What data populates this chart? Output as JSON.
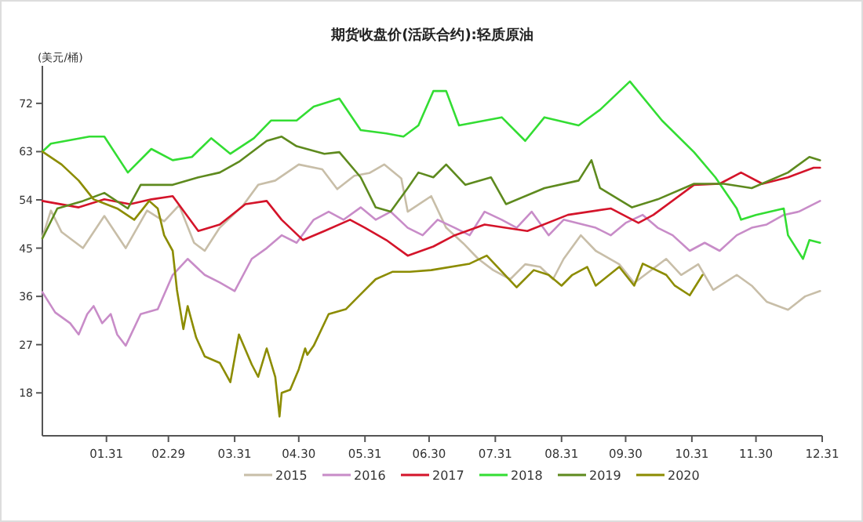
{
  "chart_data": {
    "type": "line",
    "title": "期货收盘价(活跃合约):轻质原油",
    "ylabel": "(美元/桶)",
    "xlim": [
      "--01-01",
      "--12-31"
    ],
    "ylim": [
      10,
      79
    ],
    "xticks": [
      {
        "value": "--01-31",
        "label": "01.31"
      },
      {
        "value": "--02-29",
        "label": "02.29"
      },
      {
        "value": "--03-31",
        "label": "03.31"
      },
      {
        "value": "--04-30",
        "label": "04.30"
      },
      {
        "value": "--05-31",
        "label": "05.31"
      },
      {
        "value": "--06-30",
        "label": "06.30"
      },
      {
        "value": "--07-31",
        "label": "07.31"
      },
      {
        "value": "--08-31",
        "label": "08.31"
      },
      {
        "value": "--09-30",
        "label": "09.30"
      },
      {
        "value": "--10-31",
        "label": "10.31"
      },
      {
        "value": "--11-30",
        "label": "11.30"
      },
      {
        "value": "--12-31",
        "label": "12.31"
      }
    ],
    "yticks": [
      18,
      27,
      36,
      45,
      54,
      63,
      72
    ],
    "grid": false,
    "legend": "bottom",
    "series": [
      {
        "name": "2015",
        "color": "#c8bea8",
        "x": [
          "--01-01",
          "--01-05",
          "--01-10",
          "--01-20",
          "--01-30",
          "--02-09",
          "--02-19",
          "--02-27",
          "--03-05",
          "--03-12",
          "--03-17",
          "--03-24",
          "--04-04",
          "--04-11",
          "--04-19",
          "--04-30",
          "--05-11",
          "--05-18",
          "--05-26",
          "--06-02",
          "--06-09",
          "--06-17",
          "--06-20",
          "--07-01",
          "--07-08",
          "--07-16",
          "--07-23",
          "--07-30",
          "--08-07",
          "--08-14",
          "--08-21",
          "--08-27",
          "--09-01",
          "--09-09",
          "--09-16",
          "--09-27",
          "--10-04",
          "--10-19",
          "--10-26",
          "--11-03",
          "--11-10",
          "--11-21",
          "--11-28",
          "--12-05",
          "--12-15",
          "--12-23",
          "--12-30"
        ],
        "values": [
          47,
          52,
          48,
          45,
          51,
          45,
          52,
          50,
          53,
          46,
          44.5,
          48.8,
          53,
          56.8,
          57.6,
          60.6,
          59.7,
          56,
          58.5,
          59,
          60.6,
          58,
          51.8,
          54.7,
          48.8,
          45.9,
          43,
          40.9,
          39.2,
          42,
          41.5,
          39.2,
          43,
          47.4,
          44.5,
          42,
          38.5,
          43,
          40,
          42,
          37.2,
          40,
          38,
          35,
          33.5,
          36,
          37
        ]
      },
      {
        "name": "2016",
        "color": "#c88cc8",
        "x": [
          "--01-01",
          "--01-07",
          "--01-14",
          "--01-18",
          "--01-22",
          "--01-25",
          "--01-29",
          "--02-02",
          "--02-05",
          "--02-09",
          "--02-16",
          "--02-24",
          "--03-02",
          "--03-09",
          "--03-17",
          "--03-24",
          "--03-31",
          "--04-08",
          "--04-15",
          "--04-22",
          "--04-29",
          "--05-07",
          "--05-14",
          "--05-21",
          "--05-29",
          "--06-05",
          "--06-12",
          "--06-20",
          "--06-27",
          "--07-04",
          "--07-12",
          "--07-19",
          "--07-26",
          "--08-03",
          "--08-10",
          "--08-17",
          "--08-25",
          "--09-01",
          "--09-16",
          "--09-23",
          "--09-30",
          "--10-08",
          "--10-15",
          "--10-22",
          "--10-30",
          "--11-06",
          "--11-13",
          "--11-21",
          "--11-28",
          "--12-05",
          "--12-13",
          "--12-20",
          "--12-30"
        ],
        "values": [
          36.8,
          33,
          31,
          28.9,
          32.7,
          34.2,
          31,
          32.7,
          28.9,
          26.8,
          32.7,
          33.6,
          40,
          43,
          40,
          38.6,
          37,
          43,
          45,
          47.4,
          46,
          50.3,
          51.8,
          50.3,
          52.6,
          50.3,
          51.8,
          48.8,
          47.4,
          50.3,
          48.8,
          47.4,
          51.8,
          50.3,
          48.8,
          51.8,
          47.4,
          50.3,
          48.8,
          47.4,
          49.7,
          51.2,
          48.8,
          47.4,
          44.5,
          46,
          44.5,
          47.4,
          48.8,
          49.4,
          51.2,
          51.8,
          53.8
        ]
      },
      {
        "name": "2017",
        "color": "#d4142a",
        "x": [
          "--01-01",
          "--01-18",
          "--01-30",
          "--02-11",
          "--02-21",
          "--03-02",
          "--03-14",
          "--03-24",
          "--04-05",
          "--04-15",
          "--04-22",
          "--05-02",
          "--05-12",
          "--05-24",
          "--05-31",
          "--06-10",
          "--06-20",
          "--07-02",
          "--07-12",
          "--07-26",
          "--08-15",
          "--09-03",
          "--09-23",
          "--10-06",
          "--10-13",
          "--11-01",
          "--11-13",
          "--11-23",
          "--12-03",
          "--12-15",
          "--12-27",
          "--12-30"
        ],
        "values": [
          53.8,
          52.6,
          54.1,
          53.2,
          54.1,
          54.7,
          48.2,
          49.4,
          53.2,
          53.8,
          50.3,
          46.5,
          48.2,
          50.3,
          48.8,
          46.5,
          43.6,
          45.3,
          47.4,
          49.4,
          48.2,
          51.2,
          52.4,
          49.7,
          51.2,
          56.8,
          57,
          59.1,
          57,
          58.2,
          60,
          60
        ]
      },
      {
        "name": "2018",
        "color": "#33dd33",
        "x": [
          "--01-01",
          "--01-05",
          "--01-23",
          "--01-30",
          "--02-10",
          "--02-21",
          "--03-02",
          "--03-11",
          "--03-20",
          "--03-29",
          "--04-09",
          "--04-17",
          "--04-29",
          "--05-07",
          "--05-19",
          "--05-29",
          "--06-10",
          "--06-18",
          "--06-25",
          "--07-02",
          "--07-08",
          "--07-14",
          "--08-03",
          "--08-14",
          "--08-23",
          "--09-08",
          "--09-18",
          "--10-02",
          "--10-17",
          "--11-01",
          "--11-11",
          "--11-21",
          "--11-23",
          "--11-30",
          "--12-13",
          "--12-15",
          "--12-22",
          "--12-25",
          "--12-30"
        ],
        "values": [
          63,
          64.5,
          65.8,
          65.8,
          59.1,
          63.5,
          61.4,
          62,
          65.5,
          62.6,
          65.5,
          68.8,
          68.8,
          71.4,
          72.9,
          67,
          66.4,
          65.8,
          67.9,
          74.3,
          74.3,
          67.9,
          69.4,
          65,
          69.4,
          67.9,
          70.8,
          76.1,
          68.8,
          62.9,
          58.2,
          52.4,
          50.3,
          51.2,
          52.4,
          47.4,
          43,
          46.5,
          46
        ]
      },
      {
        "name": "2019",
        "color": "#5e8a1e",
        "x": [
          "--01-01",
          "--01-08",
          "--01-20",
          "--01-30",
          "--02-10",
          "--02-16",
          "--03-02",
          "--03-14",
          "--03-24",
          "--04-02",
          "--04-15",
          "--04-22",
          "--04-29",
          "--05-12",
          "--05-19",
          "--05-29",
          "--06-05",
          "--06-12",
          "--06-20",
          "--06-25",
          "--07-02",
          "--07-08",
          "--07-17",
          "--07-29",
          "--08-05",
          "--08-23",
          "--09-08",
          "--09-14",
          "--09-18",
          "--10-03",
          "--10-15",
          "--11-01",
          "--11-15",
          "--11-28",
          "--12-15",
          "--12-25",
          "--12-30"
        ],
        "values": [
          46.8,
          52.4,
          53.8,
          55.3,
          52.4,
          56.8,
          56.8,
          58.2,
          59.1,
          61.1,
          65,
          65.8,
          64,
          62.6,
          62.9,
          58.2,
          52.6,
          51.8,
          56.2,
          59.1,
          58.2,
          60.6,
          56.8,
          58.2,
          53.2,
          56.2,
          57.6,
          61.4,
          56.2,
          52.6,
          54.1,
          57,
          57,
          56.2,
          59.1,
          62,
          61.4
        ]
      },
      {
        "name": "2020",
        "color": "#8c8c00",
        "x": [
          "--01-01",
          "--01-10",
          "--01-18",
          "--01-25",
          "--02-05",
          "--02-13",
          "--02-20",
          "--02-24",
          "--02-27",
          "--03-02",
          "--03-04",
          "--03-07",
          "--03-09",
          "--03-13",
          "--03-17",
          "--03-24",
          "--03-29",
          "--04-02",
          "--04-08",
          "--04-11",
          "--04-15",
          "--04-19",
          "--04-21",
          "--04-22",
          "--04-26",
          "--04-30",
          "--05-03",
          "--05-04",
          "--05-07",
          "--05-14",
          "--05-22",
          "--05-27",
          "--06-05",
          "--06-13",
          "--06-21",
          "--07-01",
          "--07-19",
          "--07-27",
          "--08-10",
          "--08-18",
          "--08-25",
          "--08-31",
          "--09-05",
          "--09-12",
          "--09-16",
          "--09-27",
          "--10-04",
          "--10-08",
          "--10-19",
          "--10-23",
          "--10-30",
          "--11-05"
        ],
        "values": [
          63,
          60.6,
          57.6,
          54.1,
          52.4,
          50.3,
          53.8,
          52.4,
          47.4,
          44.5,
          37.2,
          29.9,
          34.2,
          28.3,
          24.8,
          23.6,
          20,
          28.9,
          23.3,
          21,
          26.3,
          21,
          13.6,
          18,
          18.6,
          22.4,
          26.3,
          25.1,
          26.8,
          32.7,
          33.6,
          35.6,
          39.2,
          40.6,
          40.6,
          40.9,
          42.1,
          43.6,
          37.7,
          40.9,
          40,
          38,
          40,
          41.5,
          38,
          41.5,
          38,
          42.1,
          40,
          38,
          36.2,
          40
        ]
      }
    ]
  }
}
